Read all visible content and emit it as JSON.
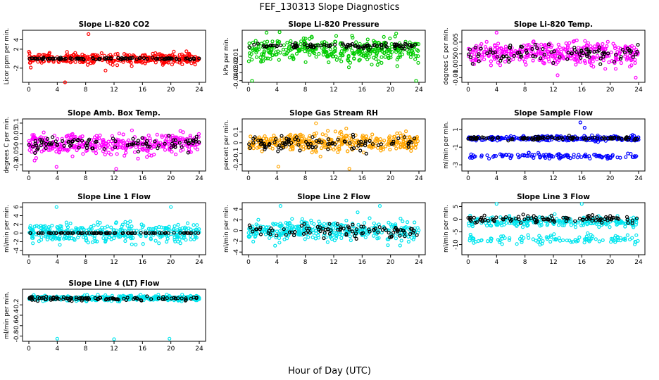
{
  "figure": {
    "title": "FEF_130313  Slope Diagnostics",
    "xlabel": "Hour of Day (UTC)"
  },
  "chart_data": [
    {
      "type": "scatter",
      "title": "Slope Li-820 CO2",
      "ylabel": "Licor ppm per min.",
      "xlim": [
        0,
        24
      ],
      "ylim": [
        -5,
        6
      ],
      "yticks": [
        -2,
        2,
        4
      ],
      "xticks": [
        0,
        4,
        8,
        12,
        16,
        20,
        24
      ],
      "series": [
        {
          "color": "#ff0000",
          "center": 0,
          "spread": 0.9,
          "outliers": [
            [
              8.4,
              5.2
            ],
            [
              10.8,
              -2.5
            ],
            [
              5.1,
              -5
            ]
          ]
        },
        {
          "color": "#000000",
          "center": 0,
          "spread": 0.15,
          "outliers": []
        }
      ]
    },
    {
      "type": "scatter",
      "title": "Slope Li-820 Pressure",
      "ylabel": "kPa per min.",
      "xlim": [
        0,
        24
      ],
      "ylim": [
        -0.042,
        0.022
      ],
      "yticks": [
        -0.04,
        -0.03,
        -0.02,
        -0.01
      ],
      "xticks": [
        0,
        4,
        8,
        12,
        16,
        20,
        24
      ],
      "series": [
        {
          "color": "#00cc00",
          "center": -0.003,
          "spread": 0.012,
          "outliers": [
            [
              0.5,
              -0.04
            ],
            [
              23.6,
              -0.04
            ],
            [
              20.8,
              0.018
            ]
          ]
        },
        {
          "color": "#000000",
          "center": 0.003,
          "spread": 0.003,
          "outliers": []
        }
      ]
    },
    {
      "type": "scatter",
      "title": "Slope Li-820 Temp.",
      "ylabel": "degrees C per min.",
      "xlim": [
        0,
        24
      ],
      "ylim": [
        -0.012,
        0.01
      ],
      "yticks": [
        -0.01,
        -0.005,
        0,
        0.005
      ],
      "xticks": [
        0,
        4,
        8,
        12,
        16,
        20,
        24
      ],
      "series": [
        {
          "color": "#ff00ff",
          "center": 0,
          "spread": 0.004,
          "outliers": [
            [
              4,
              0.009
            ],
            [
              23.6,
              -0.01
            ],
            [
              12.6,
              -0.009
            ]
          ]
        },
        {
          "color": "#000000",
          "center": 0,
          "spread": 0.003,
          "outliers": []
        }
      ]
    },
    {
      "type": "scatter",
      "title": "Slope Amb. Box Temp.",
      "ylabel": "degrees C per min.",
      "xlim": [
        0,
        24
      ],
      "ylim": [
        -0.13,
        0.12
      ],
      "yticks": [
        -0.1,
        -0.05,
        0,
        0.05,
        0.1
      ],
      "xticks": [
        0,
        4,
        8,
        12,
        16,
        20,
        24
      ],
      "series": [
        {
          "color": "#ff00ff",
          "center": 0,
          "spread": 0.04,
          "outliers": [
            [
              12.3,
              -0.12
            ],
            [
              3.9,
              -0.11
            ]
          ]
        },
        {
          "color": "#000000",
          "center": 0,
          "spread": 0.03,
          "outliers": []
        }
      ]
    },
    {
      "type": "scatter",
      "title": "Slope Gas Stream RH",
      "ylabel": "percent per min.",
      "xlim": [
        0,
        24
      ],
      "ylim": [
        -0.26,
        0.22
      ],
      "yticks": [
        -0.2,
        -0.1,
        0,
        0.1
      ],
      "xticks": [
        0,
        4,
        8,
        12,
        16,
        20,
        24
      ],
      "series": [
        {
          "color": "#ffa500",
          "center": 0,
          "spread": 0.07,
          "outliers": [
            [
              14.2,
              -0.24
            ],
            [
              4.2,
              -0.22
            ],
            [
              9.5,
              0.18
            ]
          ]
        },
        {
          "color": "#000000",
          "center": 0,
          "spread": 0.05,
          "outliers": []
        }
      ]
    },
    {
      "type": "scatter",
      "title": "Slope Sample Flow",
      "ylabel": "ml/min per min.",
      "xlim": [
        0,
        24
      ],
      "ylim": [
        -3.7,
        2.2
      ],
      "yticks": [
        -3,
        -1,
        1
      ],
      "xticks": [
        0,
        4,
        8,
        12,
        16,
        20,
        24
      ],
      "series": [
        {
          "color": "#0000ff",
          "center": 0,
          "spread": 0.25,
          "band2": -2,
          "outliers": [
            [
              15.8,
              1.8
            ],
            [
              16.4,
              1.2
            ]
          ]
        },
        {
          "color": "#000000",
          "center": 0,
          "spread": 0.15,
          "outliers": []
        }
      ]
    },
    {
      "type": "scatter",
      "title": "Slope Line 1 Flow",
      "ylabel": "ml/min per min.",
      "xlim": [
        0,
        24
      ],
      "ylim": [
        -5,
        7
      ],
      "yticks": [
        -4,
        -2,
        0,
        2,
        4,
        6
      ],
      "xticks": [
        0,
        4,
        8,
        12,
        16,
        20,
        24
      ],
      "series": [
        {
          "color": "#00e5ee",
          "center": 0,
          "spread": 1.8,
          "outliers": [
            [
              3.9,
              6
            ],
            [
              20,
              6
            ]
          ]
        },
        {
          "color": "#000000",
          "center": 0,
          "spread": 0.05,
          "outliers": []
        }
      ]
    },
    {
      "type": "scatter",
      "title": "Slope Line 2 Flow",
      "ylabel": "ml/min per min.",
      "xlim": [
        0,
        24
      ],
      "ylim": [
        -4.5,
        5.2
      ],
      "yticks": [
        -4,
        -2,
        0,
        2,
        4
      ],
      "xticks": [
        0,
        4,
        8,
        12,
        16,
        20,
        24
      ],
      "series": [
        {
          "color": "#00e5ee",
          "center": 0,
          "spread": 1.5,
          "outliers": [
            [
              4.5,
              4.6
            ],
            [
              18.5,
              4.6
            ]
          ]
        },
        {
          "color": "#000000",
          "center": 0,
          "spread": 1,
          "outliers": []
        }
      ]
    },
    {
      "type": "scatter",
      "title": "Slope Line 3 Flow",
      "ylabel": "ml/min per min.",
      "xlim": [
        0,
        24
      ],
      "ylim": [
        -14,
        6.5
      ],
      "yticks": [
        -10,
        -5,
        0,
        5
      ],
      "xticks": [
        0,
        4,
        8,
        12,
        16,
        20,
        24
      ],
      "series": [
        {
          "color": "#00e5ee",
          "center": -1,
          "spread": 1.5,
          "band2": -8,
          "outliers": [
            [
              4,
              6
            ],
            [
              16,
              6
            ]
          ]
        },
        {
          "color": "#000000",
          "center": 0,
          "spread": 1.2,
          "outliers": []
        }
      ]
    },
    {
      "type": "scatter",
      "title": "Slope Line 4 (LT) Flow",
      "ylabel": "ml/min per min.",
      "xlim": [
        0,
        24
      ],
      "ylim": [
        -0.9,
        0.1
      ],
      "yticks": [
        -0.8,
        -0.6,
        -0.4,
        -0.2
      ],
      "xticks": [
        0,
        4,
        8,
        12,
        16,
        20,
        24
      ],
      "series": [
        {
          "color": "#00e5ee",
          "center": -0.07,
          "spread": 0.04,
          "outliers": [
            [
              4,
              -0.85
            ],
            [
              12,
              -0.86
            ],
            [
              19.8,
              -0.85
            ]
          ]
        },
        {
          "color": "#000000",
          "center": -0.08,
          "spread": 0.03,
          "outliers": []
        }
      ]
    }
  ]
}
